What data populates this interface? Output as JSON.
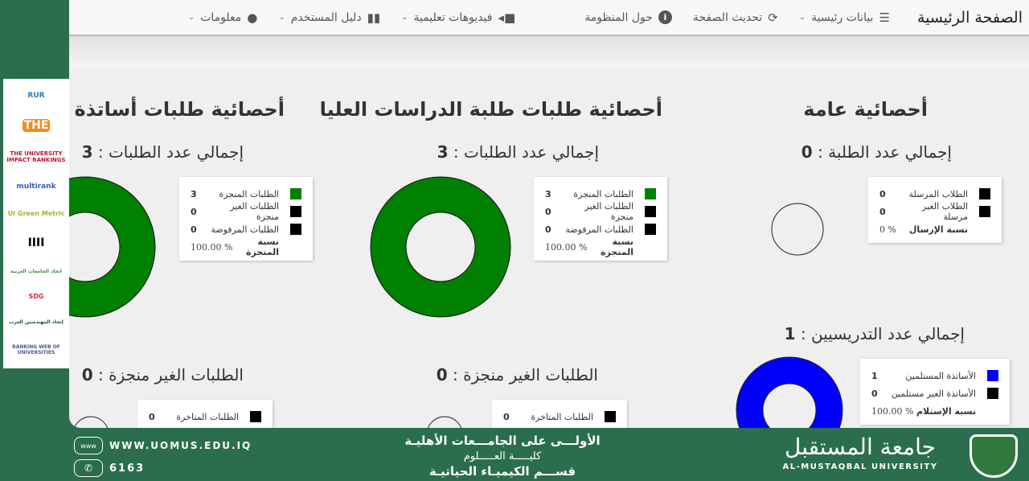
{
  "nav": {
    "brand": "الصفحة الرئيسية",
    "items": [
      {
        "label": "بيانات رئيسية",
        "icon": "list-icon",
        "dropdown": true
      },
      {
        "label": "تحديث الصفحة",
        "icon": "refresh-icon",
        "dropdown": false
      },
      {
        "label": "حول المنظومة",
        "icon": "info-icon",
        "dropdown": false
      },
      {
        "label": "فيديوهات تعليمية",
        "icon": "video-icon",
        "dropdown": true
      },
      {
        "label": "دليل المستخدم",
        "icon": "book-icon",
        "dropdown": true
      },
      {
        "label": "معلومات",
        "icon": "user-icon",
        "dropdown": true
      }
    ]
  },
  "sidebar_logos": [
    "RUR",
    "THE",
    "THE UNIVERSITY IMPACT RANKINGS",
    "multirank",
    "UI Green Metric",
    "IIII",
    "اتحاد الجامعات العربية",
    "SDG",
    "إتحاد المهندسين العرب",
    "RANKING WEB OF UNIVERSITIES"
  ],
  "general": {
    "title": "أحصائية عامة",
    "students": {
      "label": "إجمالي عدد الطلبة :",
      "total": "0",
      "legend": [
        {
          "label": "الطلاب المرسلة",
          "value": "0",
          "color": "#000000"
        },
        {
          "label": "الطلاب الغير مرسلة",
          "value": "0",
          "color": "#000000"
        }
      ],
      "pct_label": "نسبة الإرسال",
      "pct": "0 %"
    },
    "teachers": {
      "label": "إجمالي عدد التدريسيين :",
      "total": "1",
      "legend": [
        {
          "label": "الأساتذة المستلمين",
          "value": "1",
          "color": "#0000ff"
        },
        {
          "label": "الأساتذة الغير مستلمين",
          "value": "0",
          "color": "#000000"
        }
      ],
      "pct_label": "نسبة الإستلام",
      "pct": "100.00 %"
    }
  },
  "grad": {
    "title": "أحصائية طلبات طلبة الدراسات العليا",
    "requests": {
      "label": "إجمالي عدد الطلبات :",
      "total": "3",
      "legend": [
        {
          "label": "الطلبات المنجزة",
          "value": "3",
          "color": "#008000"
        },
        {
          "label": "الطلبات الغير منجزة",
          "value": "0",
          "color": "#000000"
        },
        {
          "label": "الطلبات المرفوضة",
          "value": "0",
          "color": "#000000"
        }
      ],
      "pct_label": "نسبة المنجزة",
      "pct": "100.00 %"
    },
    "pending": {
      "label": "الطلبات الغير منجزة :",
      "total": "0",
      "legend": [
        {
          "label": "الطلبات المتاخرة",
          "value": "0",
          "color": "#000000"
        }
      ]
    }
  },
  "prof": {
    "title": "أحصائية طلبات أساتذة القسم",
    "requests": {
      "label": "إجمالي عدد الطلبات :",
      "total": "3",
      "legend": [
        {
          "label": "الطلبات المنجزة",
          "value": "3",
          "color": "#008000"
        },
        {
          "label": "الطلبات الغير منجزة",
          "value": "0",
          "color": "#000000"
        },
        {
          "label": "الطلبات المرفوضة",
          "value": "0",
          "color": "#000000"
        }
      ],
      "pct_label": "نسبة المنجزة",
      "pct": "100.00 %"
    },
    "pending": {
      "label": "الطلبات الغير منجزة :",
      "total": "0",
      "legend": [
        {
          "label": "الطلبات المتاخرة",
          "value": "0",
          "color": "#000000"
        }
      ]
    }
  },
  "footer": {
    "website": "WWW.UOMUS.EDU.IQ",
    "phone": "6163",
    "line1": "الأولـــى على الجامـــعات الأهليـة",
    "line2": "كليـــــة العـــــلوم",
    "line3": "قســـم الكيميـاء الحياتيـة",
    "uni_ar": "جامعة المستقبل",
    "uni_en": "AL-MUSTAQBAL UNIVERSITY"
  },
  "colors": {
    "green": "#008000",
    "blue": "#0000ff",
    "footer": "#2a6e4e"
  }
}
